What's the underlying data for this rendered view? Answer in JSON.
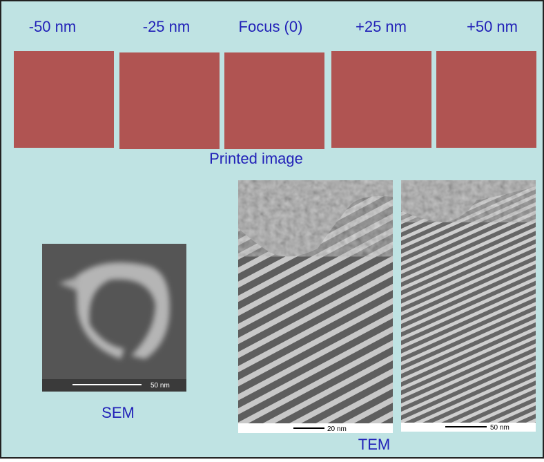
{
  "focus_labels": [
    "-50 nm",
    "-25 nm",
    "Focus (0)",
    "+25 nm",
    "+50 nm"
  ],
  "printed_image_label": "Printed image",
  "sem": {
    "label": "SEM",
    "scale_label": "50 nm"
  },
  "tem": {
    "label": "TEM",
    "scale_labels": [
      "20 nm",
      "50 nm"
    ]
  }
}
